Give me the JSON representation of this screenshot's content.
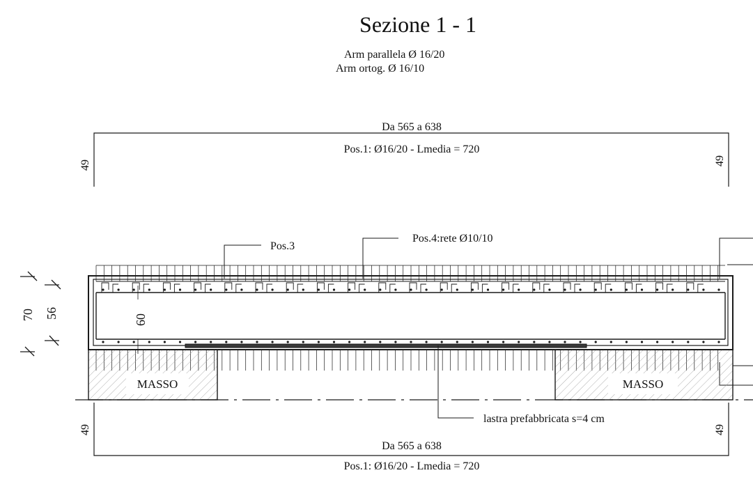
{
  "title": "Sezione 1 - 1",
  "subtitle_lines": [
    "Arm parallela Ø 16/20",
    "Arm ortog. Ø 16/10"
  ],
  "top_bar": {
    "range_label": "Da 565 a 638",
    "pos_label": "Pos.1: Ø16/20 - Lmedia = 720",
    "left_hook": "49",
    "right_hook": "49"
  },
  "bottom_bar": {
    "range_label": "Da 565 a 638",
    "pos_label": "Pos.1: Ø16/20 - Lmedia = 720",
    "left_hook": "49",
    "right_hook": "49"
  },
  "callouts": {
    "pos3": "Pos.3",
    "pos4": "Pos.4:rete Ø10/10",
    "lastra": "lastra prefabbricata s=4 cm"
  },
  "dimensions": {
    "total_height": "70",
    "inner_height": "56",
    "stirrup_height": "60"
  },
  "support_labels": [
    "MASSO",
    "MASSO"
  ],
  "colors": {
    "line": "#1a1a1a",
    "hatch": "#8a8a8a",
    "background": "#ffffff"
  }
}
